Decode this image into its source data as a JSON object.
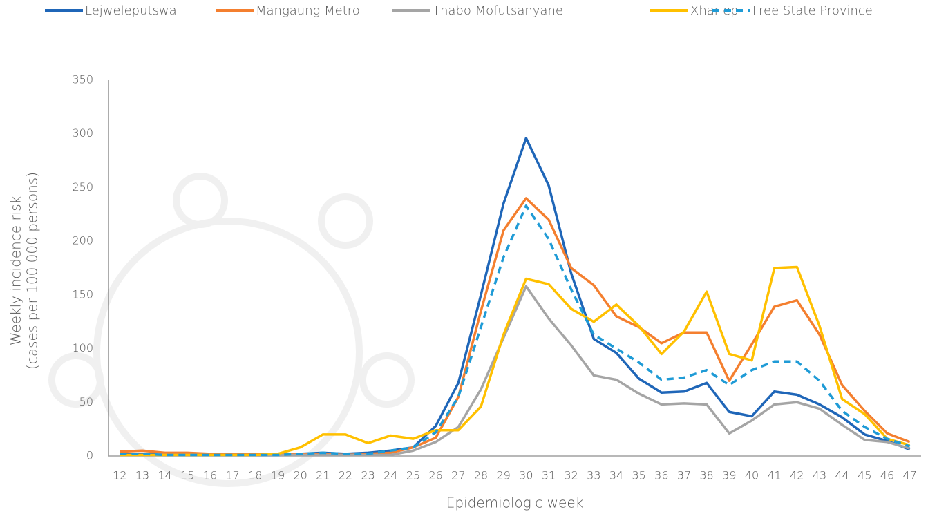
{
  "chart_data": {
    "type": "line",
    "xlabel": "Epidemiologic week",
    "ylabel": [
      "Weekly incidence risk",
      "(cases per 100 000 persons)"
    ],
    "x": [
      12,
      13,
      14,
      15,
      16,
      17,
      18,
      19,
      20,
      21,
      22,
      23,
      24,
      25,
      26,
      27,
      28,
      29,
      30,
      31,
      32,
      33,
      34,
      35,
      36,
      37,
      38,
      39,
      40,
      41,
      42,
      43,
      44,
      45,
      46,
      47
    ],
    "xlim": [
      11.5,
      47.5
    ],
    "xticks": [
      12,
      13,
      14,
      15,
      16,
      17,
      18,
      19,
      20,
      21,
      22,
      23,
      24,
      25,
      26,
      27,
      28,
      29,
      30,
      31,
      32,
      33,
      34,
      35,
      36,
      37,
      38,
      39,
      40,
      41,
      42,
      43,
      44,
      45,
      46,
      47
    ],
    "ylim": [
      0,
      350
    ],
    "yticks": [
      0,
      50,
      100,
      150,
      200,
      250,
      300,
      350
    ],
    "grid": false,
    "legend": "top",
    "series": [
      {
        "name": "Lejweleputswa",
        "color": "#1f66b8",
        "dashed": false,
        "values": [
          2,
          2,
          1,
          1,
          1,
          1,
          1,
          1,
          2,
          3,
          2,
          3,
          5,
          8,
          28,
          68,
          150,
          235,
          296,
          252,
          170,
          109,
          96,
          72,
          59,
          60,
          68,
          41,
          37,
          60,
          57,
          48,
          36,
          20,
          14,
          6
        ]
      },
      {
        "name": "Mangaung Metro",
        "color": "#f47f2f",
        "dashed": false,
        "values": [
          4,
          5,
          3,
          3,
          2,
          2,
          2,
          2,
          2,
          2,
          1,
          2,
          3,
          8,
          17,
          55,
          135,
          210,
          240,
          220,
          175,
          159,
          130,
          120,
          105,
          115,
          115,
          70,
          104,
          139,
          145,
          113,
          66,
          42,
          21,
          13
        ]
      },
      {
        "name": "Thabo Mofutsanyane",
        "color": "#a5a5a5",
        "dashed": false,
        "values": [
          1,
          1,
          1,
          1,
          1,
          1,
          1,
          1,
          1,
          1,
          1,
          1,
          1,
          5,
          13,
          27,
          62,
          110,
          158,
          128,
          103,
          75,
          71,
          58,
          48,
          49,
          48,
          21,
          33,
          48,
          50,
          44,
          29,
          15,
          13,
          7
        ]
      },
      {
        "name": "Xhariep",
        "color": "#ffc000",
        "dashed": false,
        "values": [
          1,
          1,
          1,
          1,
          1,
          1,
          1,
          2,
          8,
          20,
          20,
          12,
          19,
          16,
          24,
          24,
          46,
          113,
          165,
          160,
          137,
          125,
          141,
          121,
          95,
          116,
          153,
          95,
          89,
          175,
          176,
          121,
          53,
          39,
          16,
          10
        ]
      },
      {
        "name": "Free State Province",
        "color": "#1f9bd6",
        "dashed": true,
        "values": [
          2,
          2,
          1,
          1,
          1,
          1,
          1,
          1,
          2,
          3,
          2,
          2,
          5,
          8,
          22,
          55,
          120,
          185,
          233,
          202,
          155,
          113,
          100,
          87,
          71,
          73,
          80,
          66,
          80,
          88,
          88,
          70,
          42,
          27,
          16,
          9
        ]
      }
    ]
  }
}
